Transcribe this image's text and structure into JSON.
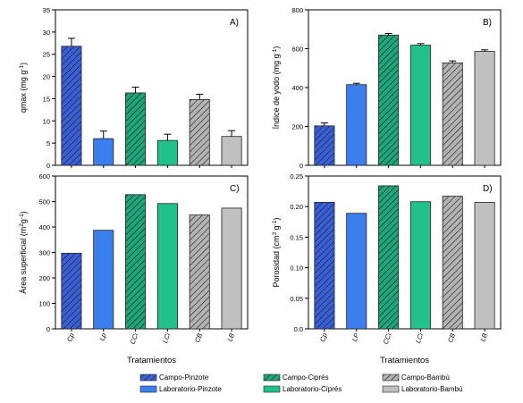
{
  "legend": {
    "placement": "bottom-center",
    "items": [
      {
        "label": "Campo-Pinzote",
        "color": "#3b5fd6",
        "hatch": true
      },
      {
        "label": "Laboratorio-Pinzote",
        "color": "#3b7ef0",
        "hatch": false
      },
      {
        "label": "Campo-Ciprés",
        "color": "#1fa67a",
        "hatch": true
      },
      {
        "label": "Laboratorio-Ciprés",
        "color": "#22c08a",
        "hatch": false
      },
      {
        "label": "Campo-Bambú",
        "color": "#b3b3b3",
        "hatch": true
      },
      {
        "label": "Laboratorio-Bambú",
        "color": "#c0c0c0",
        "hatch": false
      }
    ]
  },
  "chart_data": [
    {
      "type": "bar",
      "panel_label": "A)",
      "categories": [
        "Cp",
        "Lp",
        "CCi",
        "LCi",
        "CB",
        "LB"
      ],
      "values": [
        26.8,
        6.0,
        16.3,
        5.6,
        14.8,
        6.5
      ],
      "errors": [
        1.8,
        1.7,
        1.3,
        1.4,
        1.2,
        1.3
      ],
      "ylabel_main": "qmax (mg g",
      "ylabel_sup": "-1",
      "ylabel_end": ")",
      "xlabel": "",
      "ylim": [
        0,
        35
      ],
      "yticks": [
        0,
        5,
        10,
        15,
        20,
        25,
        30,
        35
      ],
      "show_xticklabels": false
    },
    {
      "type": "bar",
      "panel_label": "B)",
      "categories": [
        "Cp",
        "Lp",
        "CCi",
        "LCi",
        "CB",
        "LB"
      ],
      "values": [
        203,
        415,
        670,
        618,
        527,
        586
      ],
      "errors": [
        15,
        7,
        8,
        8,
        10,
        8
      ],
      "ylabel_main": "Índice de yodo (mg g",
      "ylabel_sup": "-1",
      "ylabel_end": ")",
      "xlabel": "",
      "ylim": [
        0,
        800
      ],
      "yticks": [
        0,
        200,
        400,
        600,
        800
      ],
      "show_xticklabels": false
    },
    {
      "type": "bar",
      "panel_label": "C)",
      "categories": [
        "Cp",
        "Lp",
        "CCi",
        "LCi",
        "CB",
        "LB"
      ],
      "values": [
        297,
        387,
        527,
        492,
        447,
        474
      ],
      "errors": [],
      "ylabel_main": "Área superficial (m",
      "ylabel_sup": "2",
      "ylabel_end": "g",
      "ylabel_sup2": "-1",
      "ylabel_end2": ")",
      "xlabel": "Tratamientos",
      "ylim": [
        0,
        600
      ],
      "yticks": [
        0,
        100,
        200,
        300,
        400,
        500,
        600
      ],
      "show_xticklabels": true
    },
    {
      "type": "bar",
      "panel_label": "D)",
      "categories": [
        "Cp",
        "LP",
        "CCi",
        "LCi",
        "CB",
        "LB"
      ],
      "values": [
        0.207,
        0.189,
        0.234,
        0.208,
        0.217,
        0.207
      ],
      "errors": [],
      "ylabel_main": "Porosidad (cm",
      "ylabel_sup": "3",
      "ylabel_end": " g",
      "ylabel_sup2": "-1",
      "ylabel_end2": ")",
      "xlabel": "Tratamientos",
      "ylim": [
        0,
        0.25
      ],
      "yticks": [
        0.0,
        0.05,
        0.1,
        0.15,
        0.2,
        0.25
      ],
      "yticklabels": [
        "0.0",
        "0.05",
        "0.10",
        "0.15",
        "0.20",
        "0.25"
      ],
      "show_xticklabels": true
    }
  ]
}
